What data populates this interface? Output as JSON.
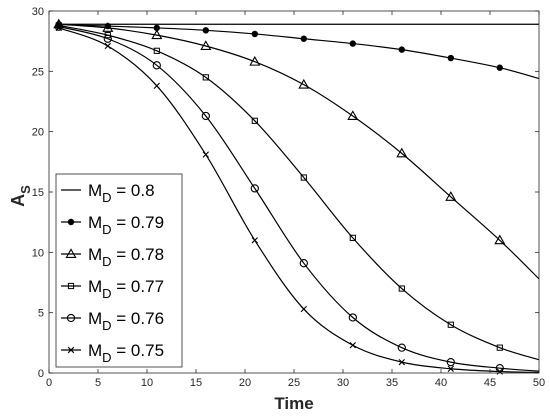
{
  "chart_data": {
    "type": "line",
    "xlabel": "Time",
    "ylabel": "A",
    "ylabel_subscript": "S",
    "xlim": [
      0,
      50
    ],
    "ylim": [
      0,
      30
    ],
    "xticks": [
      0,
      5,
      10,
      15,
      20,
      25,
      30,
      35,
      40,
      45,
      50
    ],
    "yticks": [
      0,
      5,
      10,
      15,
      20,
      25,
      30
    ],
    "grid": false,
    "legend_position": "bottom-left",
    "series": [
      {
        "label_main": "M",
        "label_sub": "D",
        "label_value": " = 0.8",
        "marker": "none",
        "x": [
          1,
          5,
          10,
          15,
          20,
          25,
          30,
          35,
          40,
          45,
          50
        ],
        "y": [
          28.9,
          28.9,
          28.9,
          28.9,
          28.9,
          28.9,
          28.9,
          28.9,
          28.9,
          28.9,
          28.9
        ],
        "marker_x": []
      },
      {
        "label_main": "M",
        "label_sub": "D",
        "label_value": " = 0.79",
        "marker": "dot",
        "x": [
          1,
          6,
          11,
          16,
          21,
          26,
          31,
          36,
          41,
          46,
          50
        ],
        "y": [
          28.9,
          28.75,
          28.6,
          28.4,
          28.1,
          27.7,
          27.3,
          26.8,
          26.1,
          25.3,
          24.4
        ],
        "marker_x": [
          1,
          6,
          11,
          16,
          21,
          26,
          31,
          36,
          41,
          46
        ]
      },
      {
        "label_main": "M",
        "label_sub": "D",
        "label_value": " = 0.78",
        "marker": "triangle",
        "x": [
          1,
          6,
          11,
          16,
          21,
          26,
          31,
          36,
          41,
          46,
          50
        ],
        "y": [
          28.9,
          28.6,
          28.0,
          27.1,
          25.8,
          23.9,
          21.3,
          18.2,
          14.6,
          11.0,
          7.8
        ],
        "marker_x": [
          1,
          6,
          11,
          16,
          21,
          26,
          31,
          36,
          41,
          46
        ]
      },
      {
        "label_main": "M",
        "label_sub": "D",
        "label_value": " = 0.77",
        "marker": "square",
        "x": [
          1,
          6,
          11,
          16,
          21,
          26,
          31,
          36,
          41,
          46,
          50
        ],
        "y": [
          28.8,
          28.0,
          26.7,
          24.5,
          20.9,
          16.2,
          11.2,
          7.0,
          4.0,
          2.1,
          1.1
        ],
        "marker_x": [
          1,
          6,
          11,
          16,
          21,
          26,
          31,
          36,
          41,
          46
        ]
      },
      {
        "label_main": "M",
        "label_sub": "D",
        "label_value": " = 0.76",
        "marker": "circle",
        "x": [
          1,
          6,
          11,
          16,
          21,
          26,
          31,
          36,
          41,
          46,
          50
        ],
        "y": [
          28.7,
          27.7,
          25.5,
          21.3,
          15.3,
          9.1,
          4.6,
          2.1,
          0.9,
          0.4,
          0.15
        ],
        "marker_x": [
          1,
          6,
          11,
          16,
          21,
          26,
          31,
          36,
          41,
          46
        ]
      },
      {
        "label_main": "M",
        "label_sub": "D",
        "label_value": " = 0.75",
        "marker": "x",
        "x": [
          1,
          6,
          11,
          16,
          21,
          26,
          31,
          36,
          41,
          46,
          50
        ],
        "y": [
          28.6,
          27.1,
          23.8,
          18.1,
          11.0,
          5.3,
          2.3,
          0.9,
          0.35,
          0.12,
          0.05
        ],
        "marker_x": [
          1,
          6,
          11,
          16,
          21,
          26,
          31,
          36,
          41,
          46
        ]
      }
    ],
    "colors": {
      "line": "#000000",
      "axis": "#262626",
      "background": "#ffffff"
    }
  }
}
